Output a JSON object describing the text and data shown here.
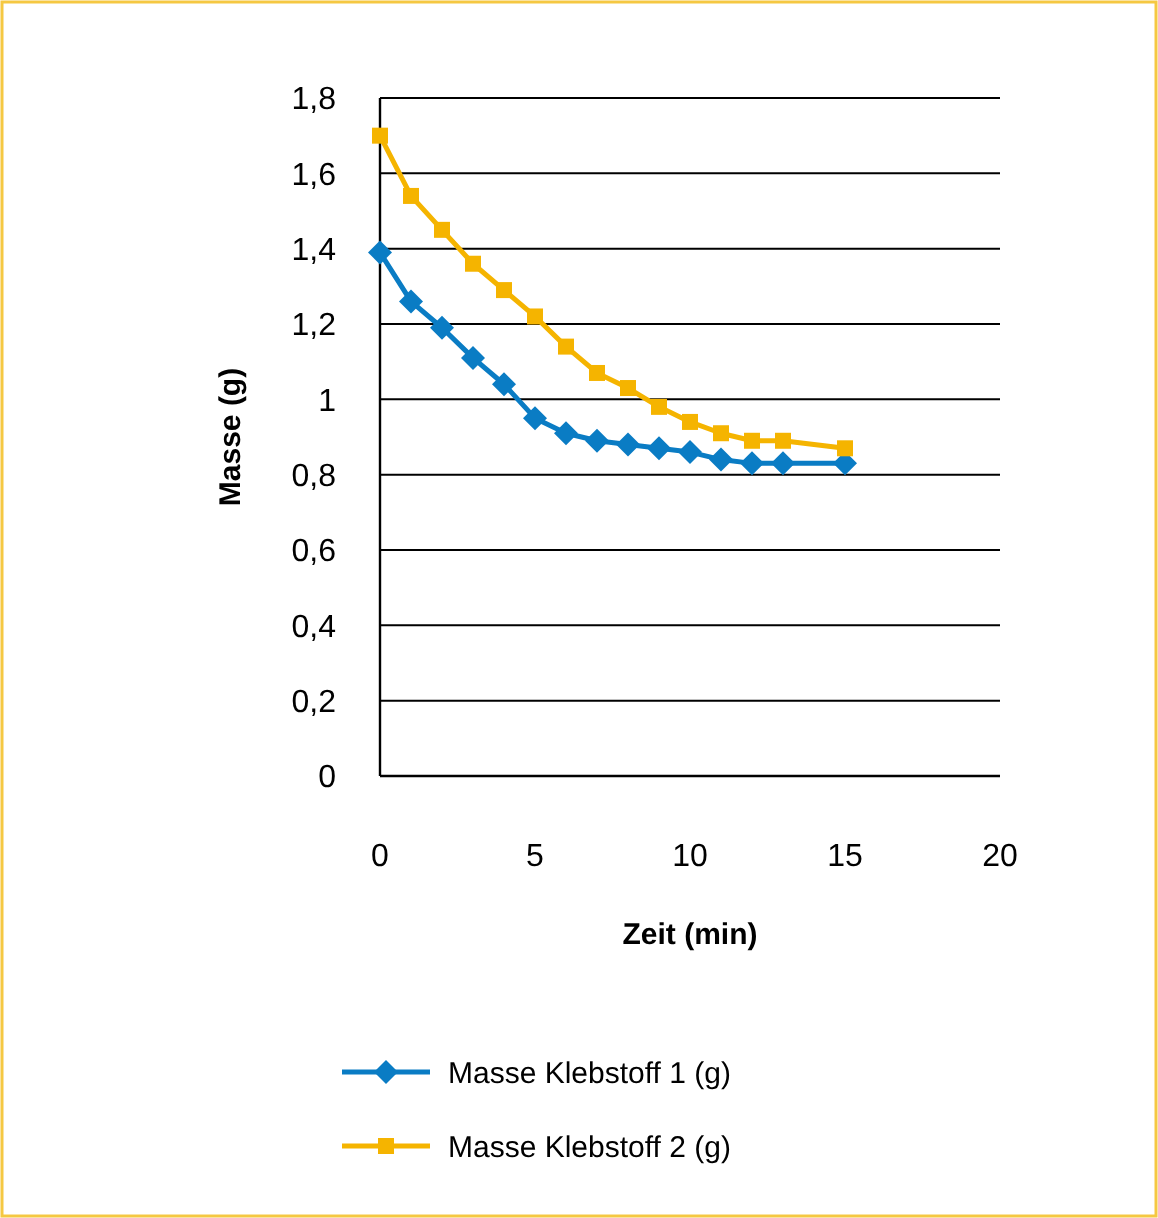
{
  "chart_data": {
    "type": "line",
    "xlabel": "Zeit (min)",
    "ylabel": "Masse (g)",
    "x": [
      0,
      1,
      2,
      3,
      4,
      5,
      6,
      7,
      8,
      9,
      10,
      11,
      12,
      13,
      15
    ],
    "series": [
      {
        "name": "Masse Klebstoff 1 (g)",
        "color": "#0a7cc4",
        "marker": "diamond",
        "values": [
          1.39,
          1.26,
          1.19,
          1.11,
          1.04,
          0.95,
          0.91,
          0.89,
          0.88,
          0.87,
          0.86,
          0.84,
          0.83,
          0.83,
          0.83
        ]
      },
      {
        "name": "Masse Klebstoff 2 (g)",
        "color": "#f5b400",
        "marker": "square",
        "values": [
          1.7,
          1.54,
          1.45,
          1.36,
          1.29,
          1.22,
          1.14,
          1.07,
          1.03,
          0.98,
          0.94,
          0.91,
          0.89,
          0.89,
          0.87
        ]
      }
    ],
    "xlim": [
      0,
      20
    ],
    "xticks": [
      0,
      5,
      10,
      15,
      20
    ],
    "ylim": [
      0,
      1.8
    ],
    "yticks": [
      {
        "value": 0,
        "label": "0"
      },
      {
        "value": 0.2,
        "label": "0,2"
      },
      {
        "value": 0.4,
        "label": "0,4"
      },
      {
        "value": 0.6,
        "label": "0,6"
      },
      {
        "value": 0.8,
        "label": "0,8"
      },
      {
        "value": 1,
        "label": "1"
      },
      {
        "value": 1.2,
        "label": "1,2"
      },
      {
        "value": 1.4,
        "label": "1,4"
      },
      {
        "value": 1.6,
        "label": "1,6"
      },
      {
        "value": 1.8,
        "label": "1,8"
      }
    ],
    "grid": "y",
    "legend": "bottom"
  }
}
